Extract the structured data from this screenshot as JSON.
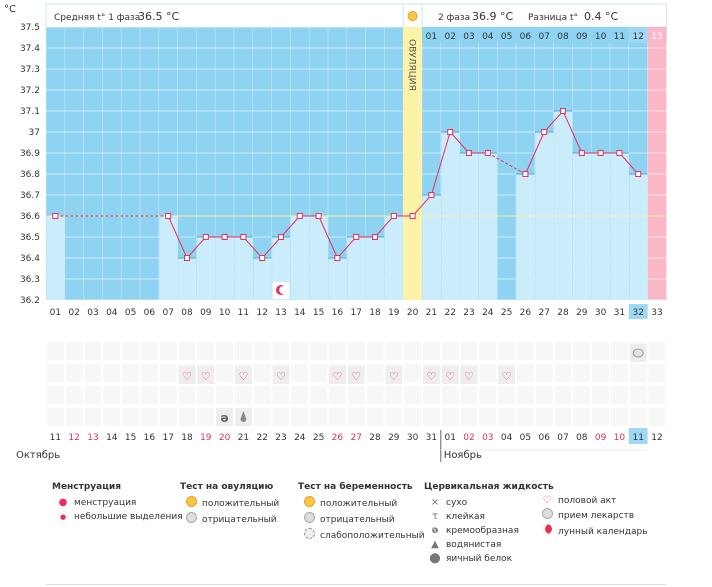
{
  "header": {
    "unit": "°C",
    "phase1_label": "Средняя t° 1 фаза",
    "phase1_value": "36.5 °C",
    "phase2_label": "2 фаза",
    "phase2_value": "36.9 °C",
    "diff_label": "Разница t°",
    "diff_value": "0.4 °C",
    "ovulation_label": "ОВУЛЯЦИЯ"
  },
  "chart_data": {
    "type": "line",
    "ylim": [
      36.2,
      37.5
    ],
    "yticks": [
      36.2,
      36.3,
      36.4,
      36.5,
      36.6,
      36.7,
      36.8,
      36.9,
      37,
      37.1,
      37.2,
      37.3,
      37.4,
      37.5
    ],
    "ytick_labels": [
      "36.2",
      "36.3",
      "36.4",
      "36.5",
      "36.6",
      "36.7",
      "36.8",
      "36.9",
      "37",
      "37.1",
      "37.2",
      "37.3",
      "37.4",
      "37.5"
    ],
    "coverline": 36.6,
    "ovulation_day": 20,
    "phase2_days": [
      "01",
      "02",
      "03",
      "04",
      "05",
      "06",
      "07",
      "08",
      "09",
      "10",
      "11",
      "12",
      "13"
    ],
    "cycle_days": [
      "01",
      "02",
      "03",
      "04",
      "05",
      "06",
      "07",
      "08",
      "09",
      "10",
      "11",
      "12",
      "13",
      "14",
      "15",
      "16",
      "17",
      "18",
      "19",
      "20",
      "21",
      "22",
      "23",
      "24",
      "25",
      "26",
      "27",
      "28",
      "29",
      "30",
      "31",
      "32",
      "33"
    ],
    "series": [
      {
        "values": [
          36.6,
          null,
          null,
          null,
          null,
          null,
          36.6,
          36.4,
          36.5,
          36.5,
          36.5,
          36.4,
          36.5,
          36.6,
          36.6,
          36.4,
          36.5,
          36.5,
          36.6,
          36.6,
          36.7,
          37.0,
          36.9,
          36.9,
          null,
          36.8,
          37.0,
          37.1,
          36.9,
          36.9,
          36.9,
          36.8,
          null
        ]
      }
    ],
    "current_cycle_day": "32",
    "current_date_label": "11"
  },
  "dates": [
    "11",
    "12",
    "13",
    "14",
    "15",
    "16",
    "17",
    "18",
    "19",
    "20",
    "21",
    "22",
    "23",
    "24",
    "25",
    "26",
    "27",
    "28",
    "29",
    "30",
    "31",
    "01",
    "02",
    "03",
    "04",
    "05",
    "06",
    "07",
    "08",
    "09",
    "10",
    "11",
    "12"
  ],
  "weekend_indices": [
    1,
    2,
    8,
    9,
    15,
    16,
    22,
    23,
    29,
    30
  ],
  "months": {
    "m1": "Октябрь",
    "m2": "Ноябрь"
  },
  "marks": {
    "sex_days": [
      8,
      9,
      11,
      13,
      16,
      17,
      19,
      21,
      23
    ],
    "moon_day": 13,
    "creamy_day": 10,
    "watery_day": 11,
    "pregnancy_neg_day": 32
  },
  "colors": {
    "accent": "#e8305a",
    "sky": "#8fd3f2",
    "bar": "#cbecfb",
    "ovulation": "#fdf2a8",
    "today": "#9fd8f4",
    "menstruation": "#f9b7c7"
  },
  "legend": {
    "menstr_title": "Менструация",
    "menstr_1": "менструация",
    "menstr_2": "небольшие выделения",
    "ov_title": "Тест на овуляцию",
    "ov_pos": "положительный",
    "ov_neg": "отрицательный",
    "preg_title": "Тест на беременность",
    "preg_pos": "положительный",
    "preg_neg": "отрицательный",
    "preg_weak": "слабоположительный",
    "cerv_title": "Цервикальная жидкость",
    "cerv_dry": "сухо",
    "cerv_sticky": "клейкая",
    "cerv_creamy": "кремообразная",
    "cerv_watery": "водянистая",
    "cerv_egg": "яичный белок",
    "sex": "половой акт",
    "meds": "прием лекарств",
    "moon": "лунный календарь"
  }
}
